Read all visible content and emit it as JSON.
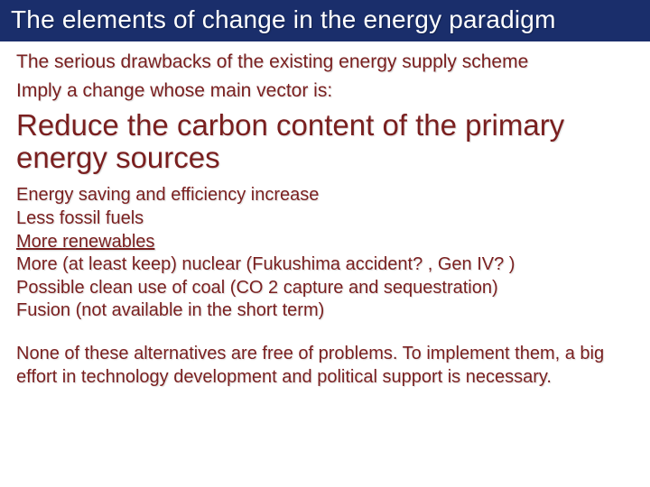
{
  "colors": {
    "title_bg": "#1a2e6b",
    "title_text": "#ffffff",
    "body_text": "#7a1f1f",
    "slide_bg": "#ffffff"
  },
  "typography": {
    "title_fontsize": 28,
    "intro_fontsize": 21,
    "main_vector_fontsize": 33,
    "bullet_fontsize": 20,
    "closing_fontsize": 20,
    "font_family": "Arial"
  },
  "title": "The elements of change in the energy paradigm",
  "intro": {
    "line1": "The serious drawbacks of the existing energy supply scheme",
    "line2": "Imply a change whose main vector is:"
  },
  "main_vector": "Reduce the carbon content of the primary energy sources",
  "bullets": [
    {
      "text": "Energy saving and efficiency increase",
      "underline": false
    },
    {
      "text": "Less fossil fuels",
      "underline": false
    },
    {
      "text": "More renewables",
      "underline": true
    },
    {
      "text": "More (at least keep) nuclear (Fukushima accident? , Gen IV? )",
      "underline": false
    },
    {
      "text": "Possible clean use of coal (CO 2 capture and sequestration)",
      "underline": false
    },
    {
      "text": "Fusion (not available in the short term)",
      "underline": false
    }
  ],
  "closing": "None of these alternatives are free of problems. To implement them, a big effort in technology development and political support is necessary."
}
